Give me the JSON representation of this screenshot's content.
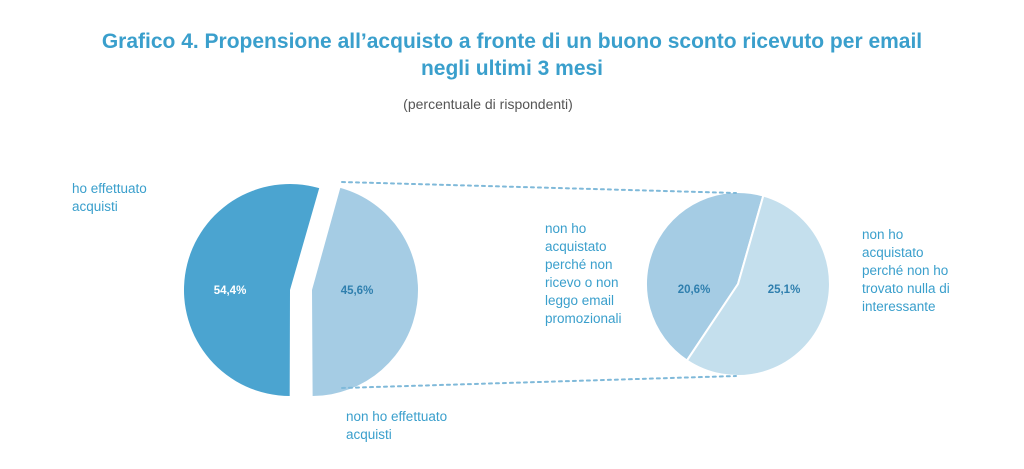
{
  "title": {
    "line1": "Grafico 4. Propensione all’acquisto a fronte di un buono sconto ricevuto per email",
    "line2": "negli ultimi 3 mesi"
  },
  "subtitle": "(percentuale di rispondenti)",
  "colors": {
    "dark_blue": "#4ba4d0",
    "light_blue": "#a5cce4",
    "lighter_blue": "#c4dfed",
    "title_blue": "#3a9fcc",
    "connector": "#7fb9d9"
  },
  "chart_data": {
    "type": "pie",
    "main_pie": {
      "slices": [
        {
          "label": "ho effettuato acquisti",
          "value": 54.4,
          "value_label": "54,4%"
        },
        {
          "label": "non ho effettuato acquisti",
          "value": 45.6,
          "value_label": "45,6%"
        }
      ]
    },
    "breakdown_pie": {
      "of": "non ho effettuato acquisti",
      "slices": [
        {
          "label": "non ho acquistato perché non ricevo o non leggo email promozionali",
          "value": 20.6,
          "value_label": "20,6%"
        },
        {
          "label": "non ho acquistato perché non ho trovato nulla di interessante",
          "value": 25.1,
          "value_label": "25,1%"
        }
      ]
    }
  },
  "labels": {
    "bought_line1": "ho effettuato",
    "bought_line2": "acquisti",
    "not_bought_line1": "non ho effettuato",
    "not_bought_line2": "acquisti",
    "no_email": [
      "non ho",
      "acquistato",
      "perché non",
      "ricevo o non",
      "leggo email",
      "promozionali"
    ],
    "nothing_interesting": [
      "non ho",
      "acquistato",
      "perché non ho",
      "trovato nulla di",
      "interessante"
    ]
  }
}
